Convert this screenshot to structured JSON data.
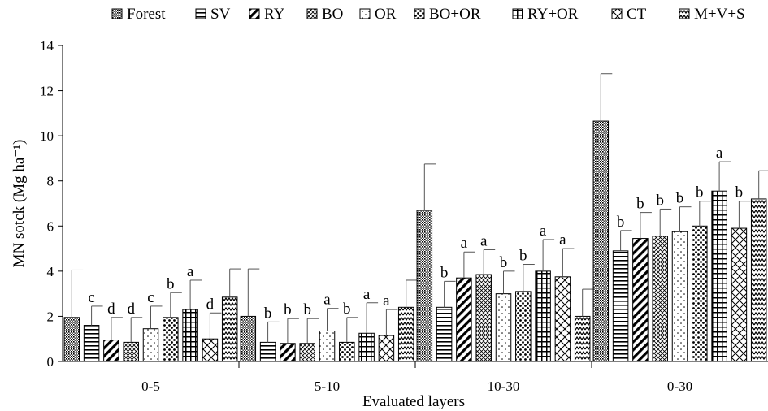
{
  "chart_data": {
    "type": "bar",
    "title": "",
    "xlabel": "Evaluated layers",
    "ylabel": "MN sotck (Mg ha⁻¹)",
    "ylim": [
      0,
      14
    ],
    "yticks": [
      0,
      2,
      4,
      6,
      8,
      10,
      12,
      14
    ],
    "grid": false,
    "legend_position": "top",
    "categories": [
      "0-5",
      "5-10",
      "10-30",
      "0-30"
    ],
    "series": [
      {
        "name": "Forest",
        "pattern": "dense-dots",
        "values": [
          1.95,
          2.0,
          6.7,
          10.65
        ],
        "errors": [
          2.1,
          2.1,
          2.05,
          2.1
        ],
        "letters": [
          "",
          "",
          "",
          ""
        ]
      },
      {
        "name": "SV",
        "pattern": "horizontal-lines",
        "values": [
          1.6,
          0.85,
          2.4,
          4.9
        ],
        "errors": [
          0.85,
          0.9,
          1.15,
          0.9
        ],
        "letters": [
          "c",
          "b",
          "b",
          "b"
        ]
      },
      {
        "name": "RY",
        "pattern": "diagonal-stripes",
        "values": [
          0.95,
          0.8,
          3.7,
          5.45
        ],
        "errors": [
          1.0,
          1.1,
          1.15,
          1.15
        ],
        "letters": [
          "d",
          "b",
          "a",
          "b"
        ]
      },
      {
        "name": "BO",
        "pattern": "crosshatch",
        "values": [
          0.85,
          0.8,
          3.85,
          5.55
        ],
        "errors": [
          1.1,
          1.1,
          1.1,
          1.2
        ],
        "letters": [
          "d",
          "b",
          "a",
          "b"
        ]
      },
      {
        "name": "OR",
        "pattern": "sparse-dots",
        "values": [
          1.45,
          1.35,
          3.0,
          5.75
        ],
        "errors": [
          1.0,
          1.0,
          1.0,
          1.1
        ],
        "letters": [
          "c",
          "a",
          "b",
          "b"
        ]
      },
      {
        "name": "BO+OR",
        "pattern": "large-dots",
        "values": [
          1.95,
          0.85,
          3.1,
          6.0
        ],
        "errors": [
          1.1,
          1.1,
          1.2,
          1.1
        ],
        "letters": [
          "b",
          "b",
          "b",
          "b"
        ]
      },
      {
        "name": "RY+OR",
        "pattern": "grid",
        "values": [
          2.3,
          1.25,
          4.0,
          7.55
        ],
        "errors": [
          1.3,
          1.35,
          1.4,
          1.3
        ],
        "letters": [
          "a",
          "a",
          "a",
          "a"
        ]
      },
      {
        "name": "CT",
        "pattern": "large-crosshatch",
        "values": [
          1.0,
          1.15,
          3.75,
          5.9
        ],
        "errors": [
          1.15,
          1.15,
          1.25,
          1.2
        ],
        "letters": [
          "d",
          "a",
          "a",
          "b"
        ]
      },
      {
        "name": "M+V+S",
        "pattern": "zigzag",
        "values": [
          2.85,
          2.4,
          2.0,
          7.2
        ],
        "errors": [
          1.25,
          1.2,
          1.2,
          1.25
        ],
        "letters": [
          "",
          "",
          "",
          ""
        ]
      }
    ]
  }
}
